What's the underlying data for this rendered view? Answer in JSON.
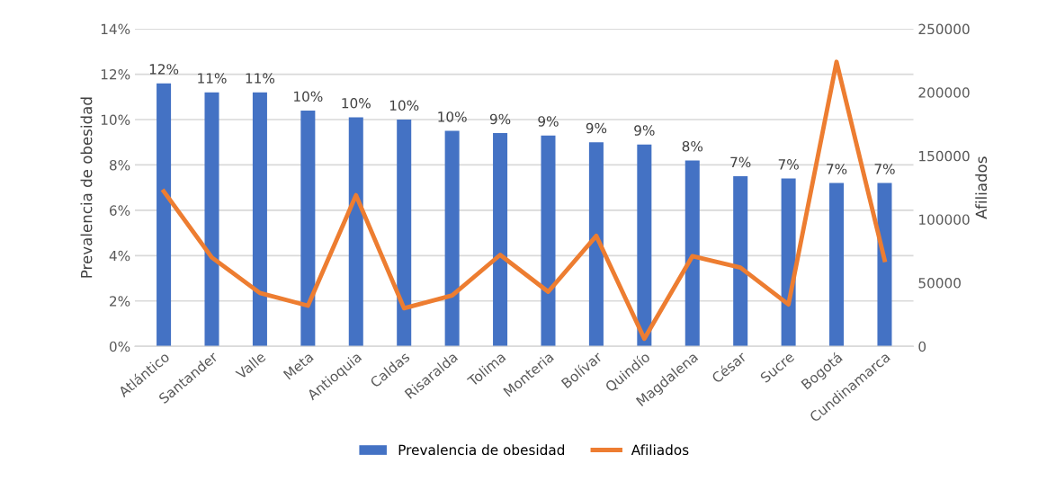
{
  "chart_data": {
    "type": "bar",
    "ylabel": "Prevalencia de obesidad",
    "y2label": "Afiliados",
    "categories": [
      "Atlántico",
      "Santander",
      "Valle",
      "Meta",
      "Antioquia",
      "Caldas",
      "Risaralda",
      "Tolima",
      "Monteria",
      "Bolívar",
      "Quindío",
      "Magdalena",
      "César",
      "Sucre",
      "Bogotá",
      "Cundinamarca"
    ],
    "series": [
      {
        "name": "Prevalencia de obesidad",
        "color": "#4472c4",
        "values": [
          11.6,
          11.2,
          11.2,
          10.4,
          10.1,
          10.0,
          9.5,
          9.4,
          9.3,
          9.0,
          8.9,
          8.2,
          7.5,
          7.4,
          7.2,
          7.2
        ],
        "value_labels": [
          "12%",
          "11%",
          "11%",
          "10%",
          "10%",
          "10%",
          "10%",
          "9%",
          "9%",
          "9%",
          "9%",
          "8%",
          "7%",
          "7%",
          "7%",
          "7%"
        ]
      },
      {
        "name": "Afiliados",
        "type": "line",
        "axis": "y2",
        "color": "#ed7d31",
        "values": [
          122000,
          70000,
          42000,
          32000,
          119000,
          30000,
          40000,
          72000,
          43000,
          87000,
          6000,
          71000,
          62000,
          33000,
          224000,
          68000
        ]
      }
    ],
    "ylim": [
      0,
      14
    ],
    "yticks": [
      {
        "value": 0,
        "label": "0%"
      },
      {
        "value": 2,
        "label": "2%"
      },
      {
        "value": 4,
        "label": "4%"
      },
      {
        "value": 6,
        "label": "6%"
      },
      {
        "value": 8,
        "label": "8%"
      },
      {
        "value": 10,
        "label": "10%"
      },
      {
        "value": 12,
        "label": "12%"
      },
      {
        "value": 14,
        "label": "14%"
      }
    ],
    "y2lim": [
      0,
      250000
    ],
    "y2ticks": [
      0,
      50000,
      100000,
      150000,
      200000,
      250000
    ],
    "grid": "y",
    "legend": "bottom",
    "marker": "none",
    "line_style": "solid"
  }
}
